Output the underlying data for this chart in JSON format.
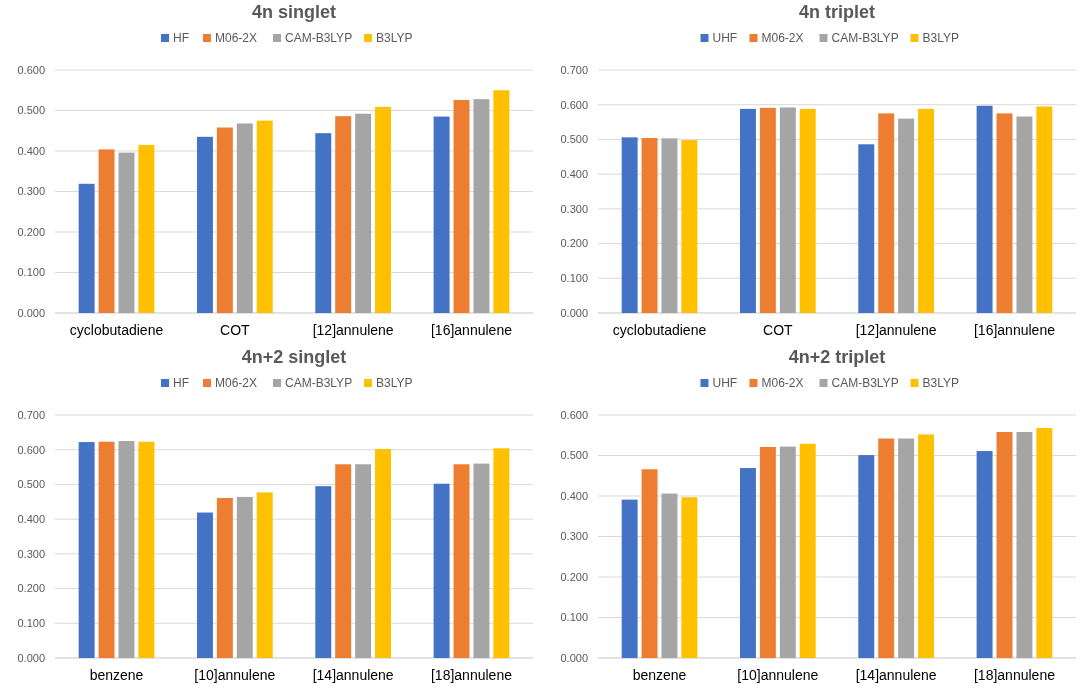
{
  "chart_data": [
    {
      "type": "bar",
      "title": "4n singlet",
      "categories": [
        "cyclobutadiene",
        "COT",
        "[12]annulene",
        "[16]annulene"
      ],
      "series": [
        {
          "name": "HF",
          "color": "#4472c4",
          "values": [
            0.319,
            0.435,
            0.444,
            0.485
          ]
        },
        {
          "name": "M06-2X",
          "color": "#ed7d31",
          "values": [
            0.404,
            0.458,
            0.486,
            0.526
          ]
        },
        {
          "name": "CAM-B3LYP",
          "color": "#a5a5a5",
          "values": [
            0.396,
            0.468,
            0.492,
            0.528
          ]
        },
        {
          "name": "B3LYP",
          "color": "#ffc000",
          "values": [
            0.415,
            0.475,
            0.509,
            0.55
          ]
        }
      ],
      "ylim": [
        0,
        0.6
      ],
      "yticks": [
        {
          "value": 0,
          "label": "0.000"
        },
        {
          "value": 0.1,
          "label": "0.100"
        },
        {
          "value": 0.2,
          "label": "0.200"
        },
        {
          "value": 0.3,
          "label": "0.300"
        },
        {
          "value": 0.4,
          "label": "0.400"
        },
        {
          "value": 0.5,
          "label": "0.500"
        },
        {
          "value": 0.6,
          "label": "0.600"
        }
      ],
      "grid": "y",
      "legend": "top"
    },
    {
      "type": "bar",
      "title": "4n triplet",
      "categories": [
        "cyclobutadiene",
        "COT",
        "[12]annulene",
        "[16]annulene"
      ],
      "series": [
        {
          "name": "UHF",
          "color": "#4472c4",
          "values": [
            0.506,
            0.588,
            0.486,
            0.597
          ]
        },
        {
          "name": "M06-2X",
          "color": "#ed7d31",
          "values": [
            0.504,
            0.591,
            0.575,
            0.575
          ]
        },
        {
          "name": "CAM-B3LYP",
          "color": "#a5a5a5",
          "values": [
            0.503,
            0.592,
            0.56,
            0.566
          ]
        },
        {
          "name": "B3LYP",
          "color": "#ffc000",
          "values": [
            0.498,
            0.588,
            0.588,
            0.595
          ]
        }
      ],
      "ylim": [
        0,
        0.7
      ],
      "yticks": [
        {
          "value": 0,
          "label": "0.000"
        },
        {
          "value": 0.1,
          "label": "0.100"
        },
        {
          "value": 0.2,
          "label": "0.200"
        },
        {
          "value": 0.3,
          "label": "0.300"
        },
        {
          "value": 0.4,
          "label": "0.400"
        },
        {
          "value": 0.5,
          "label": "0.500"
        },
        {
          "value": 0.6,
          "label": "0.600"
        },
        {
          "value": 0.7,
          "label": "0.700"
        }
      ],
      "grid": "y",
      "legend": "top"
    },
    {
      "type": "bar",
      "title": "4n+2 singlet",
      "categories": [
        "benzene",
        "[10]annulene",
        "[14]annulene",
        "[18]annulene"
      ],
      "series": [
        {
          "name": "HF",
          "color": "#4472c4",
          "values": [
            0.622,
            0.419,
            0.495,
            0.502
          ]
        },
        {
          "name": "M06-2X",
          "color": "#ed7d31",
          "values": [
            0.623,
            0.461,
            0.558,
            0.558
          ]
        },
        {
          "name": "CAM-B3LYP",
          "color": "#a5a5a5",
          "values": [
            0.625,
            0.464,
            0.558,
            0.56
          ]
        },
        {
          "name": "B3LYP",
          "color": "#ffc000",
          "values": [
            0.623,
            0.477,
            0.602,
            0.604
          ]
        }
      ],
      "ylim": [
        0,
        0.7
      ],
      "yticks": [
        {
          "value": 0,
          "label": "0.000"
        },
        {
          "value": 0.1,
          "label": "0.100"
        },
        {
          "value": 0.2,
          "label": "0.200"
        },
        {
          "value": 0.3,
          "label": "0.300"
        },
        {
          "value": 0.4,
          "label": "0.400"
        },
        {
          "value": 0.5,
          "label": "0.500"
        },
        {
          "value": 0.6,
          "label": "0.600"
        },
        {
          "value": 0.7,
          "label": "0.700"
        }
      ],
      "grid": "y",
      "legend": "top"
    },
    {
      "type": "bar",
      "title": "4n+2 triplet",
      "categories": [
        "benzene",
        "[10]annulene",
        "[14]annulene",
        "[18]annulene"
      ],
      "series": [
        {
          "name": "UHF",
          "color": "#4472c4",
          "values": [
            0.391,
            0.469,
            0.501,
            0.511
          ]
        },
        {
          "name": "M06-2X",
          "color": "#ed7d31",
          "values": [
            0.466,
            0.521,
            0.542,
            0.558
          ]
        },
        {
          "name": "CAM-B3LYP",
          "color": "#a5a5a5",
          "values": [
            0.406,
            0.522,
            0.542,
            0.558
          ]
        },
        {
          "name": "B3LYP",
          "color": "#ffc000",
          "values": [
            0.397,
            0.529,
            0.552,
            0.568
          ]
        }
      ],
      "ylim": [
        0,
        0.6
      ],
      "yticks": [
        {
          "value": 0,
          "label": "0.000"
        },
        {
          "value": 0.1,
          "label": "0.100"
        },
        {
          "value": 0.2,
          "label": "0.200"
        },
        {
          "value": 0.3,
          "label": "0.300"
        },
        {
          "value": 0.4,
          "label": "0.400"
        },
        {
          "value": 0.5,
          "label": "0.500"
        },
        {
          "value": 0.6,
          "label": "0.600"
        }
      ],
      "grid": "y",
      "legend": "top"
    }
  ]
}
